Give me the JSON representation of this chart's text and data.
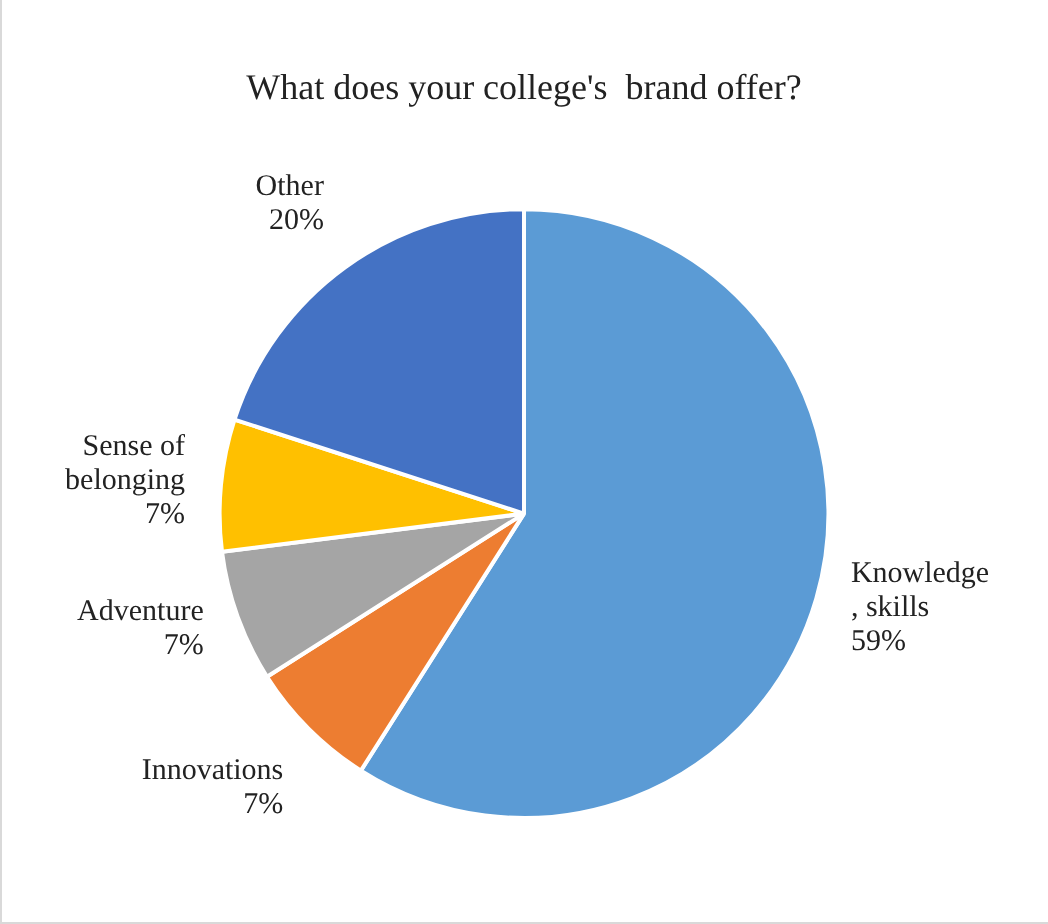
{
  "chart_data": {
    "type": "pie",
    "title": "What does your college's  brand offer?",
    "categories": [
      "Knowledge\n, skills",
      "Innovations",
      "Adventure",
      "Sense of\nbelonging",
      "Other"
    ],
    "values": [
      59,
      7,
      7,
      7,
      20
    ],
    "value_labels": [
      "59%",
      "7%",
      "7%",
      "7%",
      "20%"
    ],
    "colors": [
      "#5b9bd5",
      "#ed7d31",
      "#a5a5a5",
      "#ffc000",
      "#4472c4"
    ],
    "legend": false
  }
}
